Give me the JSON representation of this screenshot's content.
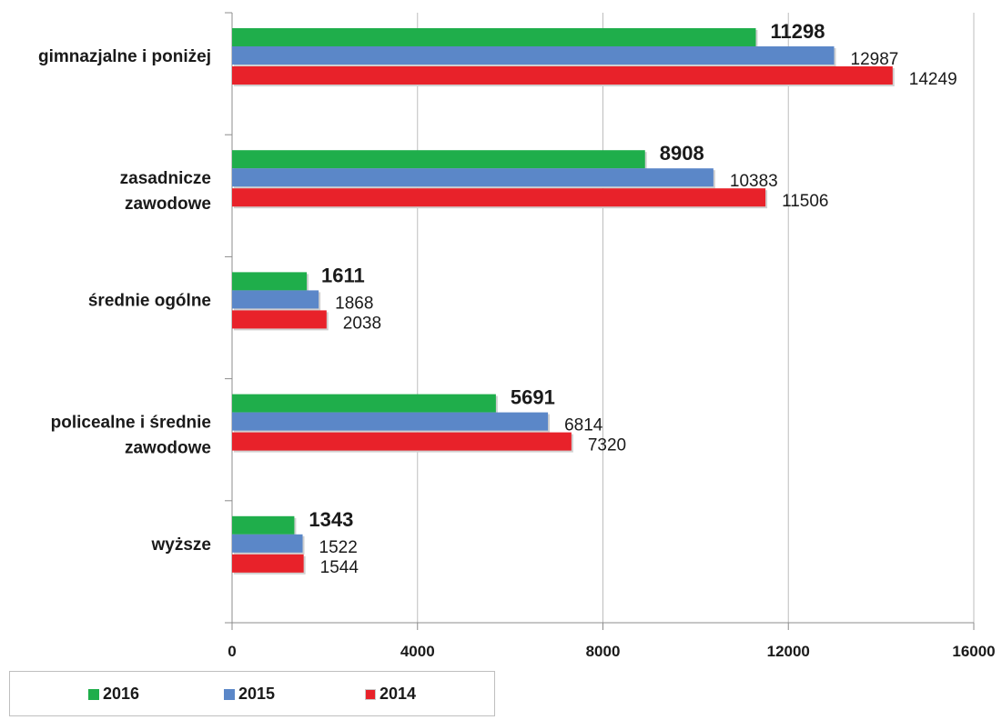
{
  "chart_data": {
    "type": "bar",
    "orientation": "horizontal",
    "categories": [
      "gimnazjalne i poniżej",
      "zasadnicze zawodowe",
      "średnie ogólne",
      "policealne i średnie zawodowe",
      "wyższe"
    ],
    "category_lines": [
      [
        "gimnazjalne i poniżej"
      ],
      [
        "zasadnicze",
        "zawodowe"
      ],
      [
        "średnie ogólne"
      ],
      [
        "policealne i średnie",
        "zawodowe"
      ],
      [
        "wyższe"
      ]
    ],
    "series": [
      {
        "name": "2016",
        "color": "#1fae4b",
        "values": [
          11298,
          8908,
          1611,
          5691,
          1343
        ],
        "label_bold": true
      },
      {
        "name": "2015",
        "color": "#5b87c8",
        "values": [
          12987,
          10383,
          1868,
          6814,
          1522
        ],
        "label_bold": false
      },
      {
        "name": "2014",
        "color": "#e8222a",
        "values": [
          14249,
          11506,
          2038,
          7320,
          1544
        ],
        "label_bold": false
      }
    ],
    "xlim": [
      0,
      16000
    ],
    "xticks": [
      "0",
      "4000",
      "8000",
      "12000",
      "16000"
    ],
    "grid": true,
    "legend_position": "bottom-left",
    "title": "",
    "xlabel": "",
    "ylabel": ""
  }
}
